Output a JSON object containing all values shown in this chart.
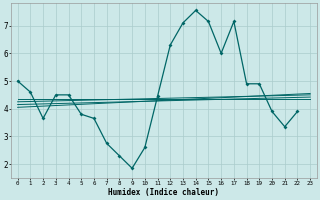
{
  "x": [
    0,
    1,
    2,
    3,
    4,
    5,
    6,
    7,
    8,
    9,
    10,
    11,
    12,
    13,
    14,
    15,
    16,
    17,
    18,
    19,
    20,
    21,
    22,
    23
  ],
  "line1": [
    5.0,
    4.6,
    3.65,
    4.5,
    4.5,
    3.8,
    3.65,
    2.75,
    2.3,
    1.85,
    2.6,
    4.45,
    6.3,
    7.1,
    7.55,
    7.15,
    6.0,
    7.15,
    4.9,
    4.9,
    3.9,
    3.35,
    3.9,
    null
  ],
  "flat_lines": [
    [
      [
        0,
        23
      ],
      [
        4.35,
        4.35
      ]
    ],
    [
      [
        0,
        23
      ],
      [
        4.25,
        4.5
      ]
    ],
    [
      [
        0,
        23
      ],
      [
        4.15,
        4.42
      ]
    ],
    [
      [
        0,
        23
      ],
      [
        4.05,
        4.55
      ]
    ]
  ],
  "bg_color": "#cce8e8",
  "line_color": "#006666",
  "grid_color": "#aacccc",
  "xlabel": "Humidex (Indice chaleur)",
  "ylim": [
    1.5,
    7.8
  ],
  "xlim": [
    -0.5,
    23.5
  ],
  "yticks": [
    2,
    3,
    4,
    5,
    6,
    7
  ],
  "xticks": [
    0,
    1,
    2,
    3,
    4,
    5,
    6,
    7,
    8,
    9,
    10,
    11,
    12,
    13,
    14,
    15,
    16,
    17,
    18,
    19,
    20,
    21,
    22,
    23
  ]
}
